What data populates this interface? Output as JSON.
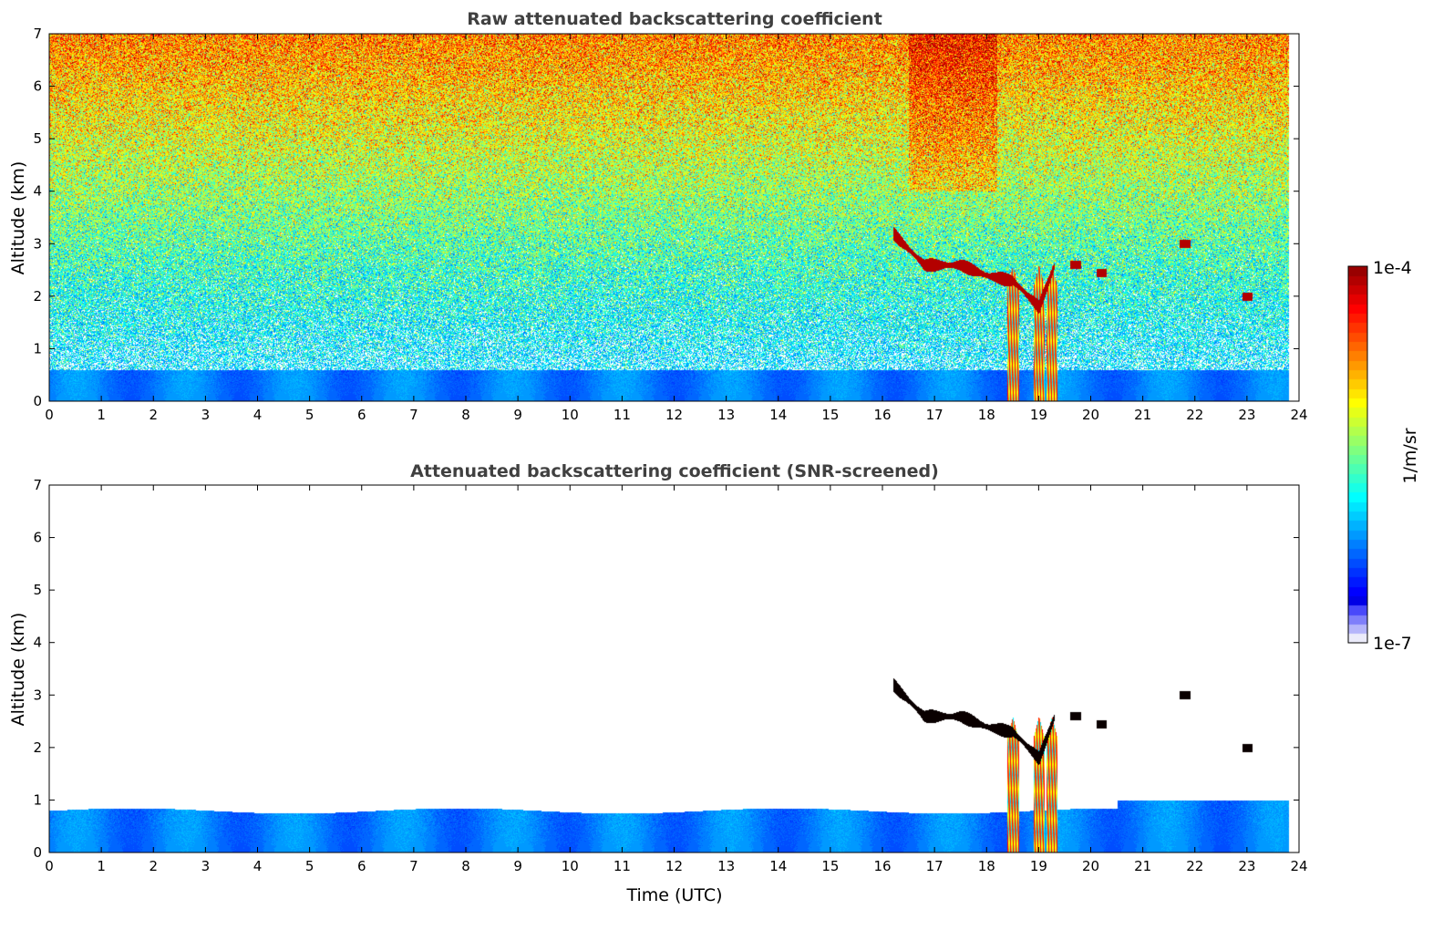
{
  "chart_data": [
    {
      "type": "heatmap",
      "title": "Raw attenuated backscattering coefficient",
      "xlabel": "",
      "ylabel": "Altitude (km)",
      "xlim": [
        0,
        24
      ],
      "ylim": [
        0,
        7
      ],
      "xticks": [
        "0",
        "1",
        "2",
        "3",
        "4",
        "5",
        "6",
        "7",
        "8",
        "9",
        "10",
        "11",
        "12",
        "13",
        "14",
        "15",
        "16",
        "17",
        "18",
        "19",
        "20",
        "21",
        "22",
        "23",
        "24"
      ],
      "yticks": [
        "0",
        "1",
        "2",
        "3",
        "4",
        "5",
        "6",
        "7"
      ],
      "data_end_time": 23.8,
      "boundary_layer_top_km": 0.6,
      "cloud_layer": {
        "time": [
          16.2,
          16.8,
          17.5,
          18.0,
          18.5,
          19.0,
          19.3
        ],
        "altitude_km": [
          3.2,
          2.6,
          2.6,
          2.4,
          2.3,
          1.8,
          2.6
        ]
      },
      "precip_streaks_time": [
        18.5,
        19.0,
        19.25
      ],
      "isolated_cloud_patches": [
        {
          "time": 21.8,
          "altitude_km": 3.0
        },
        {
          "time": 20.2,
          "altitude_km": 2.45
        },
        {
          "time": 23.0,
          "altitude_km": 2.0
        },
        {
          "time": 19.7,
          "altitude_km": 2.6
        }
      ]
    },
    {
      "type": "heatmap",
      "title": "Attenuated backscattering coefficient (SNR-screened)",
      "xlabel": "Time (UTC)",
      "ylabel": "Altitude (km)",
      "xlim": [
        0,
        24
      ],
      "ylim": [
        0,
        7
      ],
      "xticks": [
        "0",
        "1",
        "2",
        "3",
        "4",
        "5",
        "6",
        "7",
        "8",
        "9",
        "10",
        "11",
        "12",
        "13",
        "14",
        "15",
        "16",
        "17",
        "18",
        "19",
        "20",
        "21",
        "22",
        "23",
        "24"
      ],
      "yticks": [
        "0",
        "1",
        "2",
        "3",
        "4",
        "5",
        "6",
        "7"
      ],
      "boundary_layer_top_km": 0.8
    }
  ],
  "colorbar": {
    "label": "1/m/sr",
    "min_label": "1e-7",
    "max_label": "1e-4",
    "scale": "log",
    "colormap": "jet"
  }
}
